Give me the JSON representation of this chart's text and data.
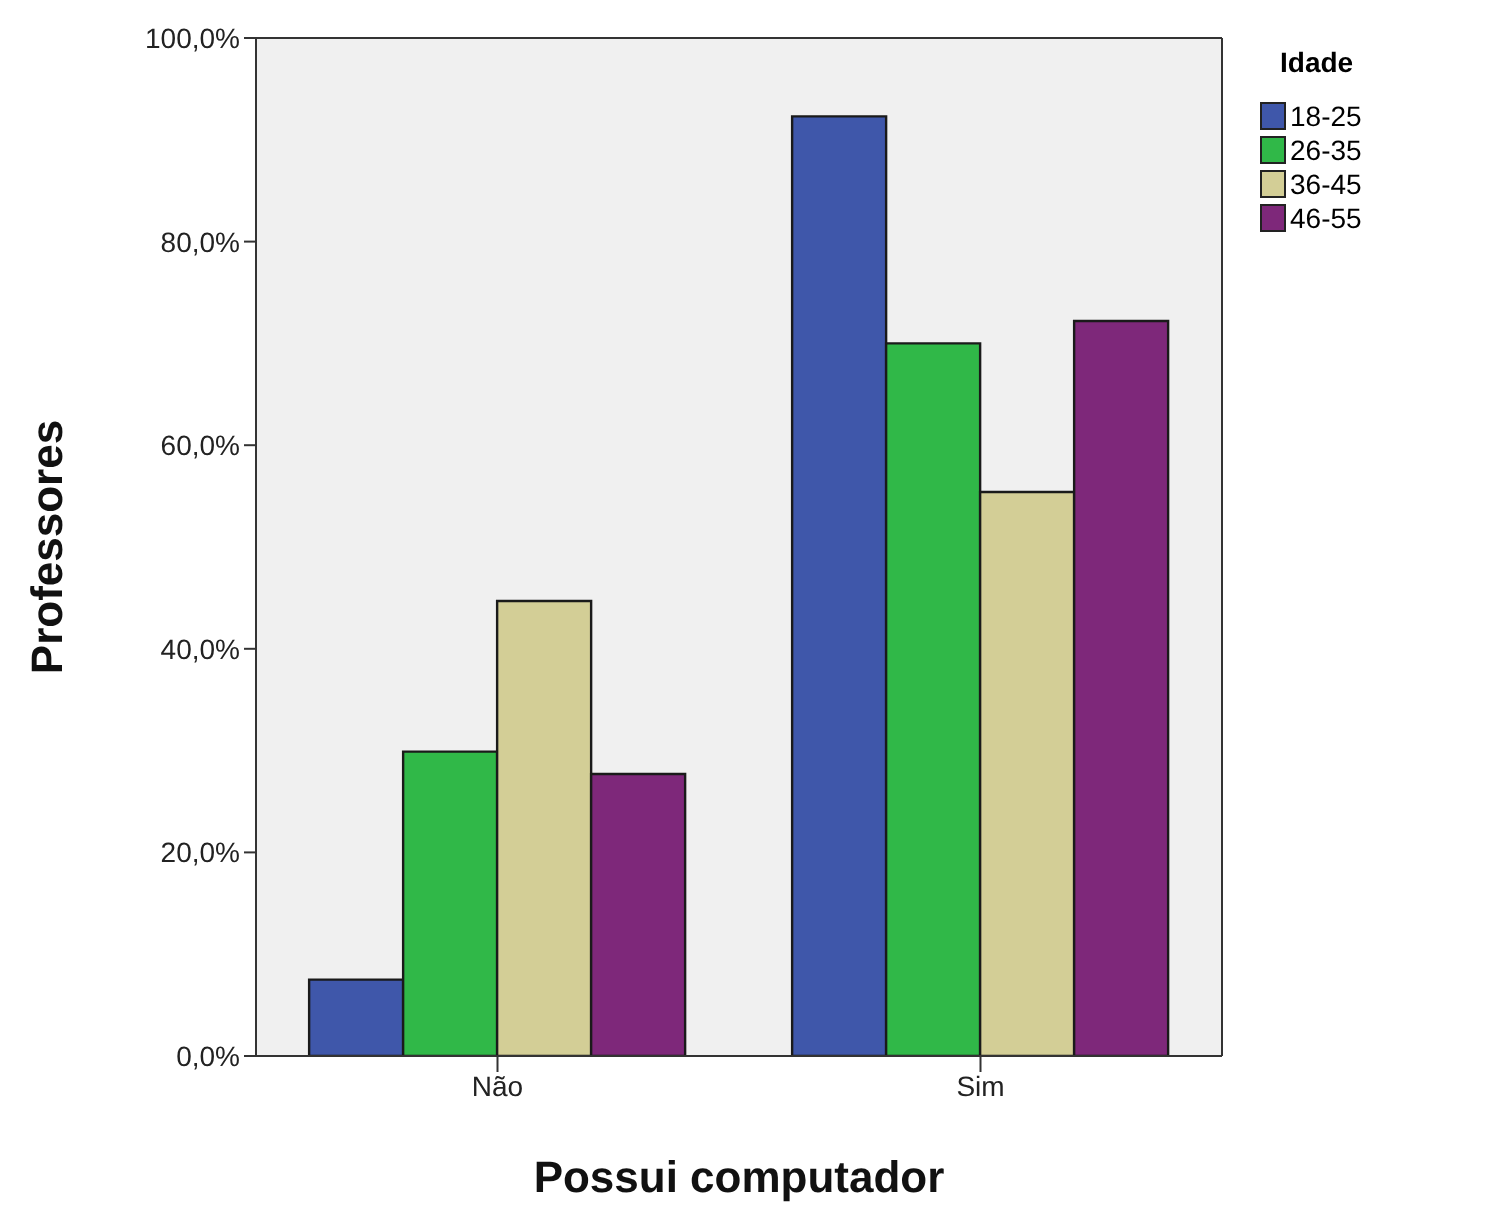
{
  "chart_data": {
    "type": "bar",
    "xlabel": "Possui computador",
    "ylabel": "Professores",
    "legend_title": "Idade",
    "categories": [
      "Não",
      "Sim"
    ],
    "series": [
      {
        "name": "18-25",
        "color": "#3f57aa",
        "values": [
          7.5,
          92.3
        ]
      },
      {
        "name": "26-35",
        "color": "#30b848",
        "values": [
          29.9,
          70.0
        ]
      },
      {
        "name": "36-45",
        "color": "#d3ce96",
        "values": [
          44.7,
          55.4
        ]
      },
      {
        "name": "46-55",
        "color": "#7e287a",
        "values": [
          27.7,
          72.2
        ]
      }
    ],
    "ylim": [
      0,
      100
    ],
    "yticks": [
      {
        "value": 0,
        "label": "0,0%"
      },
      {
        "value": 20,
        "label": "20,0%"
      },
      {
        "value": 40,
        "label": "40,0%"
      },
      {
        "value": 60,
        "label": "60,0%"
      },
      {
        "value": 80,
        "label": "80,0%"
      },
      {
        "value": 100,
        "label": "100,0%"
      }
    ],
    "grid": false,
    "legend": "right"
  }
}
